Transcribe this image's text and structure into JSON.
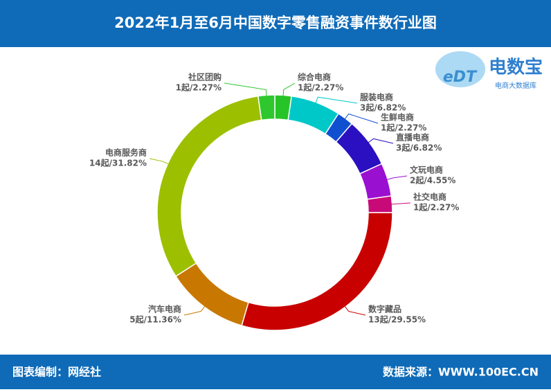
{
  "chart_data": {
    "type": "donut",
    "title": "2022年1月至6月中国数字零售融资事件数行业图",
    "categories": [
      "综合电商",
      "服装电商",
      "生鲜电商",
      "直播电商",
      "文玩电商",
      "社交电商",
      "数字藏品",
      "汽车电商",
      "电商服务商",
      "社区团购"
    ],
    "values": [
      1,
      3,
      1,
      3,
      2,
      1,
      13,
      5,
      14,
      1
    ],
    "value_labels": [
      "1起/2.27%",
      "3起/6.82%",
      "1起/2.27%",
      "3起/6.82%",
      "2起/4.55%",
      "1起/2.27%",
      "13起/29.55%",
      "5起/11.36%",
      "14起/31.82%",
      "1起/2.27%"
    ],
    "colors": [
      "#27c427",
      "#00c8c8",
      "#1050d0",
      "#2a10c0",
      "#9a10d0",
      "#c80a78",
      "#c80000",
      "#c87800",
      "#9cc000",
      "#2ec82e"
    ]
  },
  "logo": {
    "brand": "电数宝",
    "mark": "eDT",
    "tagline": "电商大数据库"
  },
  "footer": {
    "left": "图表编制：网经社",
    "right": "数据来源：WWW.100EC.CN"
  }
}
